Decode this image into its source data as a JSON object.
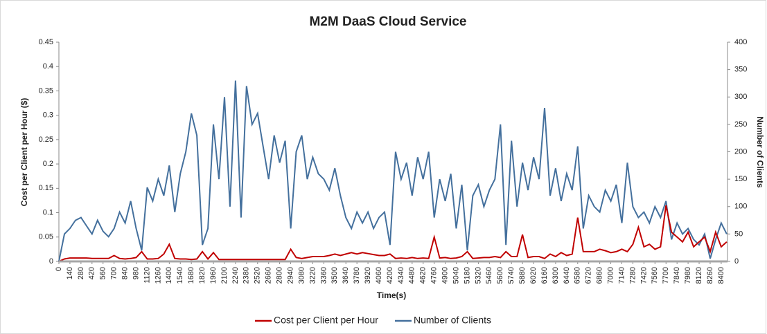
{
  "chart_data": {
    "type": "line",
    "title": "M2M DaaS Cloud Service",
    "xlabel": "Time(s)",
    "ylabel": "Cost per Client per Hour ($)",
    "y2label": "Number of Clients",
    "xlim": [
      0,
      8480
    ],
    "xticks": [
      0,
      140,
      280,
      420,
      560,
      700,
      840,
      980,
      1120,
      1260,
      1400,
      1540,
      1680,
      1820,
      1960,
      2100,
      2240,
      2380,
      2520,
      2660,
      2800,
      2940,
      3080,
      3220,
      3360,
      3500,
      3640,
      3780,
      3920,
      4060,
      4200,
      4340,
      4480,
      4620,
      4760,
      4900,
      5040,
      5180,
      5320,
      5460,
      5600,
      5740,
      5880,
      6020,
      6160,
      6300,
      6440,
      6580,
      6720,
      6860,
      7000,
      7140,
      7280,
      7420,
      7560,
      7700,
      7840,
      7980,
      8120,
      8260,
      8400
    ],
    "ylim": [
      0,
      0.45
    ],
    "yticks": [
      0,
      0.05,
      0.1,
      0.15,
      0.2,
      0.25,
      0.3,
      0.35,
      0.4,
      0.45
    ],
    "y2lim": [
      0,
      400
    ],
    "y2ticks": [
      0,
      50,
      100,
      150,
      200,
      250,
      300,
      350,
      400
    ],
    "grid": false,
    "legend": "bottom",
    "x": [
      0,
      70,
      140,
      210,
      280,
      350,
      420,
      490,
      560,
      630,
      700,
      770,
      840,
      910,
      980,
      1050,
      1120,
      1190,
      1260,
      1330,
      1400,
      1470,
      1540,
      1610,
      1680,
      1750,
      1820,
      1890,
      1960,
      2030,
      2100,
      2170,
      2240,
      2310,
      2380,
      2450,
      2520,
      2590,
      2660,
      2730,
      2800,
      2870,
      2940,
      3010,
      3080,
      3150,
      3220,
      3290,
      3360,
      3430,
      3500,
      3570,
      3640,
      3710,
      3780,
      3850,
      3920,
      3990,
      4060,
      4130,
      4200,
      4270,
      4340,
      4410,
      4480,
      4550,
      4620,
      4690,
      4760,
      4830,
      4900,
      4970,
      5040,
      5110,
      5180,
      5250,
      5320,
      5390,
      5460,
      5530,
      5600,
      5670,
      5740,
      5810,
      5880,
      5950,
      6020,
      6090,
      6160,
      6230,
      6300,
      6370,
      6440,
      6510,
      6580,
      6650,
      6720,
      6790,
      6860,
      6930,
      7000,
      7070,
      7140,
      7210,
      7280,
      7350,
      7420,
      7490,
      7560,
      7630,
      7700,
      7770,
      7840,
      7910,
      7980,
      8050,
      8120,
      8190,
      8260,
      8330,
      8400,
      8470
    ],
    "series": [
      {
        "name": "Cost per Client per Hour",
        "color": "#c00000",
        "axis": "y",
        "values": [
          0,
          0.005,
          0.007,
          0.007,
          0.007,
          0.007,
          0.006,
          0.006,
          0.006,
          0.006,
          0.012,
          0.006,
          0.005,
          0.006,
          0.008,
          0.02,
          0.005,
          0.005,
          0.006,
          0.015,
          0.035,
          0.006,
          0.005,
          0.005,
          0.004,
          0.005,
          0.02,
          0.005,
          0.018,
          0.004,
          0.004,
          0.004,
          0.004,
          0.004,
          0.004,
          0.004,
          0.004,
          0.004,
          0.004,
          0.004,
          0.004,
          0.004,
          0.025,
          0.008,
          0.006,
          0.008,
          0.01,
          0.01,
          0.01,
          0.012,
          0.015,
          0.012,
          0.015,
          0.018,
          0.015,
          0.018,
          0.016,
          0.014,
          0.012,
          0.012,
          0.015,
          0.006,
          0.007,
          0.006,
          0.008,
          0.006,
          0.007,
          0.006,
          0.05,
          0.007,
          0.008,
          0.006,
          0.007,
          0.01,
          0.02,
          0.006,
          0.007,
          0.008,
          0.008,
          0.01,
          0.008,
          0.02,
          0.01,
          0.01,
          0.055,
          0.008,
          0.01,
          0.01,
          0.006,
          0.015,
          0.01,
          0.018,
          0.012,
          0.015,
          0.09,
          0.02,
          0.02,
          0.02,
          0.025,
          0.022,
          0.018,
          0.02,
          0.025,
          0.02,
          0.035,
          0.07,
          0.03,
          0.035,
          0.025,
          0.03,
          0.115,
          0.06,
          0.05,
          0.04,
          0.06,
          0.03,
          0.04,
          0.05,
          0.02,
          0.06,
          0.03,
          0.04
        ]
      },
      {
        "name": "Number of Clients",
        "color": "#44709d",
        "axis": "y2",
        "values": [
          0,
          50,
          60,
          75,
          80,
          65,
          50,
          75,
          55,
          45,
          60,
          90,
          70,
          110,
          60,
          20,
          135,
          110,
          150,
          120,
          175,
          90,
          160,
          200,
          270,
          230,
          30,
          60,
          250,
          150,
          300,
          100,
          330,
          80,
          320,
          250,
          270,
          210,
          150,
          230,
          180,
          220,
          60,
          200,
          230,
          150,
          190,
          160,
          150,
          130,
          170,
          120,
          80,
          60,
          90,
          70,
          90,
          60,
          80,
          90,
          30,
          200,
          150,
          180,
          120,
          190,
          150,
          200,
          80,
          150,
          110,
          160,
          60,
          140,
          20,
          120,
          140,
          100,
          130,
          150,
          250,
          30,
          220,
          100,
          180,
          130,
          190,
          150,
          280,
          120,
          170,
          110,
          160,
          130,
          210,
          60,
          120,
          100,
          90,
          130,
          110,
          140,
          70,
          180,
          100,
          80,
          90,
          70,
          100,
          80,
          110,
          40,
          70,
          50,
          60,
          40,
          30,
          50,
          5,
          40,
          70,
          50
        ]
      }
    ]
  }
}
